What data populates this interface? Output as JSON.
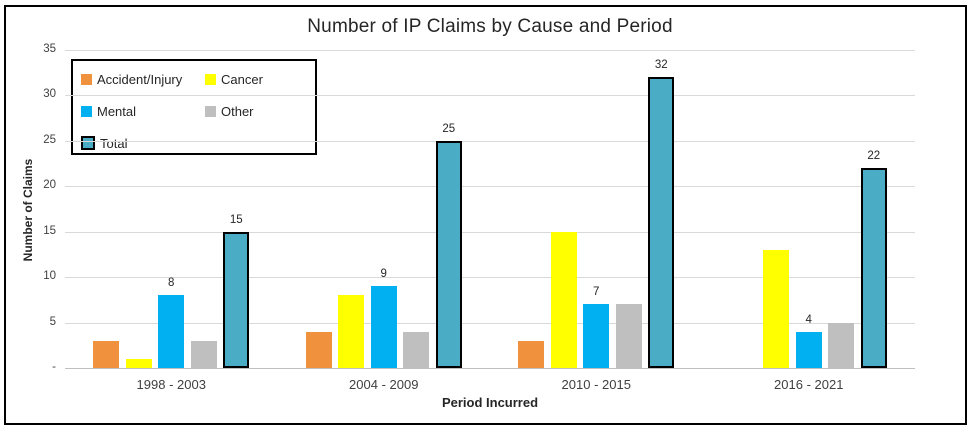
{
  "chart_data": {
    "type": "bar",
    "title": "Number of IP Claims by Cause and Period",
    "xlabel": "Period Incurred",
    "ylabel": "Number of Claims",
    "categories": [
      "1998 - 2003",
      "2004 - 2009",
      "2010 - 2015",
      "2016 - 2021"
    ],
    "series": [
      {
        "name": "Accident/Injury",
        "color": "#F0913D",
        "values": [
          3,
          4,
          3,
          0
        ],
        "labeled": false
      },
      {
        "name": "Cancer",
        "color": "#FFFF00",
        "values": [
          1,
          8,
          15,
          13
        ],
        "labeled": false
      },
      {
        "name": "Mental",
        "color": "#00B0F0",
        "values": [
          8,
          9,
          7,
          4
        ],
        "labeled": true
      },
      {
        "name": "Other",
        "color": "#BFBFBF",
        "values": [
          3,
          4,
          7,
          5
        ],
        "labeled": false
      },
      {
        "name": "Total",
        "color": "#4BACC6",
        "values": [
          15,
          25,
          32,
          22
        ],
        "labeled": true,
        "outlined": true
      }
    ],
    "ylim": [
      0,
      35
    ],
    "ytick_step": 5,
    "ytick_labels": [
      "-",
      "5",
      "10",
      "15",
      "20",
      "25",
      "30",
      "35"
    ],
    "grid": true,
    "legend_position": "top-left-inside",
    "colors": {
      "gridline": "#D9D9D9",
      "axis": "#BFBFBF",
      "text": "#262626",
      "tick_text": "#404040"
    }
  }
}
